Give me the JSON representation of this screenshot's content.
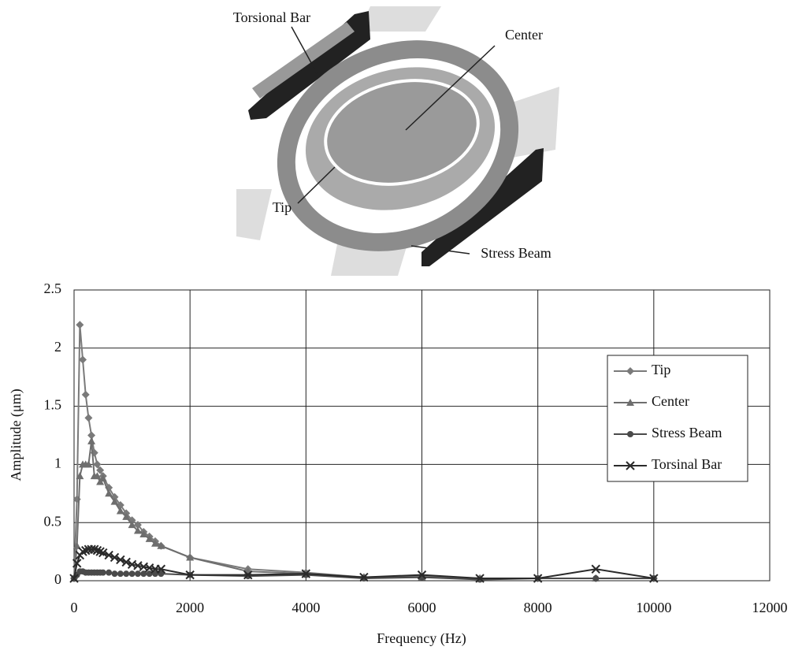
{
  "diagram": {
    "labels": [
      "Torsional Bar",
      "Center",
      "Tip",
      "Stress Beam"
    ]
  },
  "chart_data": {
    "type": "line",
    "x_label": "Frequency (Hz)",
    "y_label": "Amplitude (μm)",
    "x": [
      0,
      50,
      100,
      150,
      200,
      250,
      300,
      350,
      400,
      450,
      500,
      600,
      700,
      800,
      900,
      1000,
      1100,
      1200,
      1300,
      1400,
      1500,
      2000,
      3000,
      4000,
      5000,
      6000,
      7000,
      8000,
      9000,
      10000
    ],
    "series": [
      {
        "name": "Tip",
        "color": "#7a7a7a",
        "marker": "diamond",
        "values": [
          0.02,
          0.7,
          2.2,
          1.9,
          1.6,
          1.4,
          1.25,
          1.1,
          1.0,
          0.95,
          0.9,
          0.8,
          0.72,
          0.65,
          0.58,
          0.52,
          0.48,
          0.42,
          0.38,
          0.34,
          0.3,
          0.2,
          0.1,
          0.07,
          0.03,
          0.04,
          0.02,
          0.02,
          0.02,
          0.02
        ]
      },
      {
        "name": "Center",
        "color": "#6e6e6e",
        "marker": "triangle",
        "values": [
          0.02,
          0.3,
          0.9,
          1.0,
          1.0,
          1.0,
          1.2,
          0.9,
          0.9,
          0.85,
          0.88,
          0.75,
          0.68,
          0.6,
          0.55,
          0.48,
          0.43,
          0.4,
          0.36,
          0.32,
          0.3,
          0.2,
          0.08,
          0.06,
          0.03,
          0.03,
          0.02,
          0.02,
          0.02,
          0.02
        ]
      },
      {
        "name": "Stress Beam",
        "color": "#4a4a4a",
        "marker": "circle",
        "values": [
          0.02,
          0.05,
          0.08,
          0.08,
          0.07,
          0.07,
          0.07,
          0.07,
          0.07,
          0.07,
          0.07,
          0.07,
          0.06,
          0.06,
          0.06,
          0.06,
          0.06,
          0.06,
          0.06,
          0.06,
          0.06,
          0.05,
          0.04,
          0.05,
          0.02,
          0.03,
          0.01,
          0.02,
          0.02,
          0.02
        ]
      },
      {
        "name": "Torsinal Bar",
        "color": "#2a2a2a",
        "marker": "x",
        "values": [
          0.02,
          0.15,
          0.22,
          0.25,
          0.26,
          0.27,
          0.27,
          0.27,
          0.26,
          0.25,
          0.24,
          0.22,
          0.2,
          0.18,
          0.16,
          0.14,
          0.13,
          0.12,
          0.11,
          0.1,
          0.1,
          0.05,
          0.05,
          0.06,
          0.03,
          0.05,
          0.02,
          0.02,
          0.1,
          0.02
        ]
      }
    ],
    "xlim": [
      0,
      12000
    ],
    "xticks": [
      0,
      2000,
      4000,
      6000,
      8000,
      10000,
      12000
    ],
    "ylim": [
      0,
      2.5
    ],
    "yticks": [
      0,
      0.5,
      1,
      1.5,
      2,
      2.5
    ],
    "grid": true,
    "legend": "right"
  }
}
